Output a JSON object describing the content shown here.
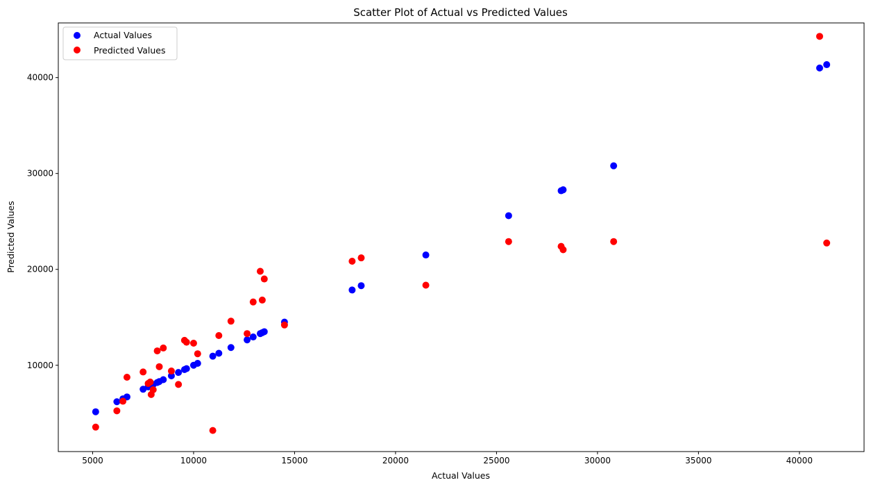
{
  "chart_data": {
    "type": "scatter",
    "title": "Scatter Plot of Actual vs Predicted Values",
    "xlabel": "Actual Values",
    "ylabel": "Predicted Values",
    "xlim": [
      3300,
      43200
    ],
    "ylim": [
      1000,
      45700
    ],
    "xticks": [
      5000,
      10000,
      15000,
      20000,
      25000,
      30000,
      35000,
      40000
    ],
    "yticks": [
      10000,
      20000,
      30000,
      40000
    ],
    "grid": false,
    "legend_position": "top-left",
    "x": [
      5150,
      6200,
      6500,
      6700,
      7500,
      7750,
      7850,
      7900,
      8000,
      8200,
      8300,
      8500,
      8900,
      9250,
      9550,
      9650,
      10000,
      10200,
      10950,
      11250,
      11850,
      12650,
      12950,
      13300,
      13400,
      13500,
      14500,
      17850,
      18300,
      21500,
      25600,
      28200,
      28300,
      30800,
      41000,
      41350
    ],
    "series": [
      {
        "name": "Actual Values",
        "color": "#0000ff",
        "values": [
          5150,
          6200,
          6500,
          6700,
          7500,
          7750,
          7850,
          7900,
          8000,
          8200,
          8300,
          8500,
          8900,
          9250,
          9550,
          9650,
          10000,
          10200,
          10950,
          11250,
          11850,
          12650,
          12950,
          13300,
          13400,
          13500,
          14500,
          17850,
          18300,
          21500,
          25600,
          28200,
          28300,
          30800,
          41000,
          41350
        ]
      },
      {
        "name": "Predicted Values",
        "color": "#ff0000",
        "values": [
          3550,
          5250,
          6250,
          8750,
          9300,
          8100,
          8250,
          6950,
          7450,
          11500,
          9850,
          11800,
          9400,
          8000,
          12600,
          12400,
          12300,
          11200,
          3200,
          13100,
          14600,
          13300,
          16600,
          19800,
          16800,
          19000,
          14200,
          20850,
          21200,
          18350,
          22900,
          22400,
          22050,
          22900,
          44300,
          22750
        ]
      }
    ]
  }
}
